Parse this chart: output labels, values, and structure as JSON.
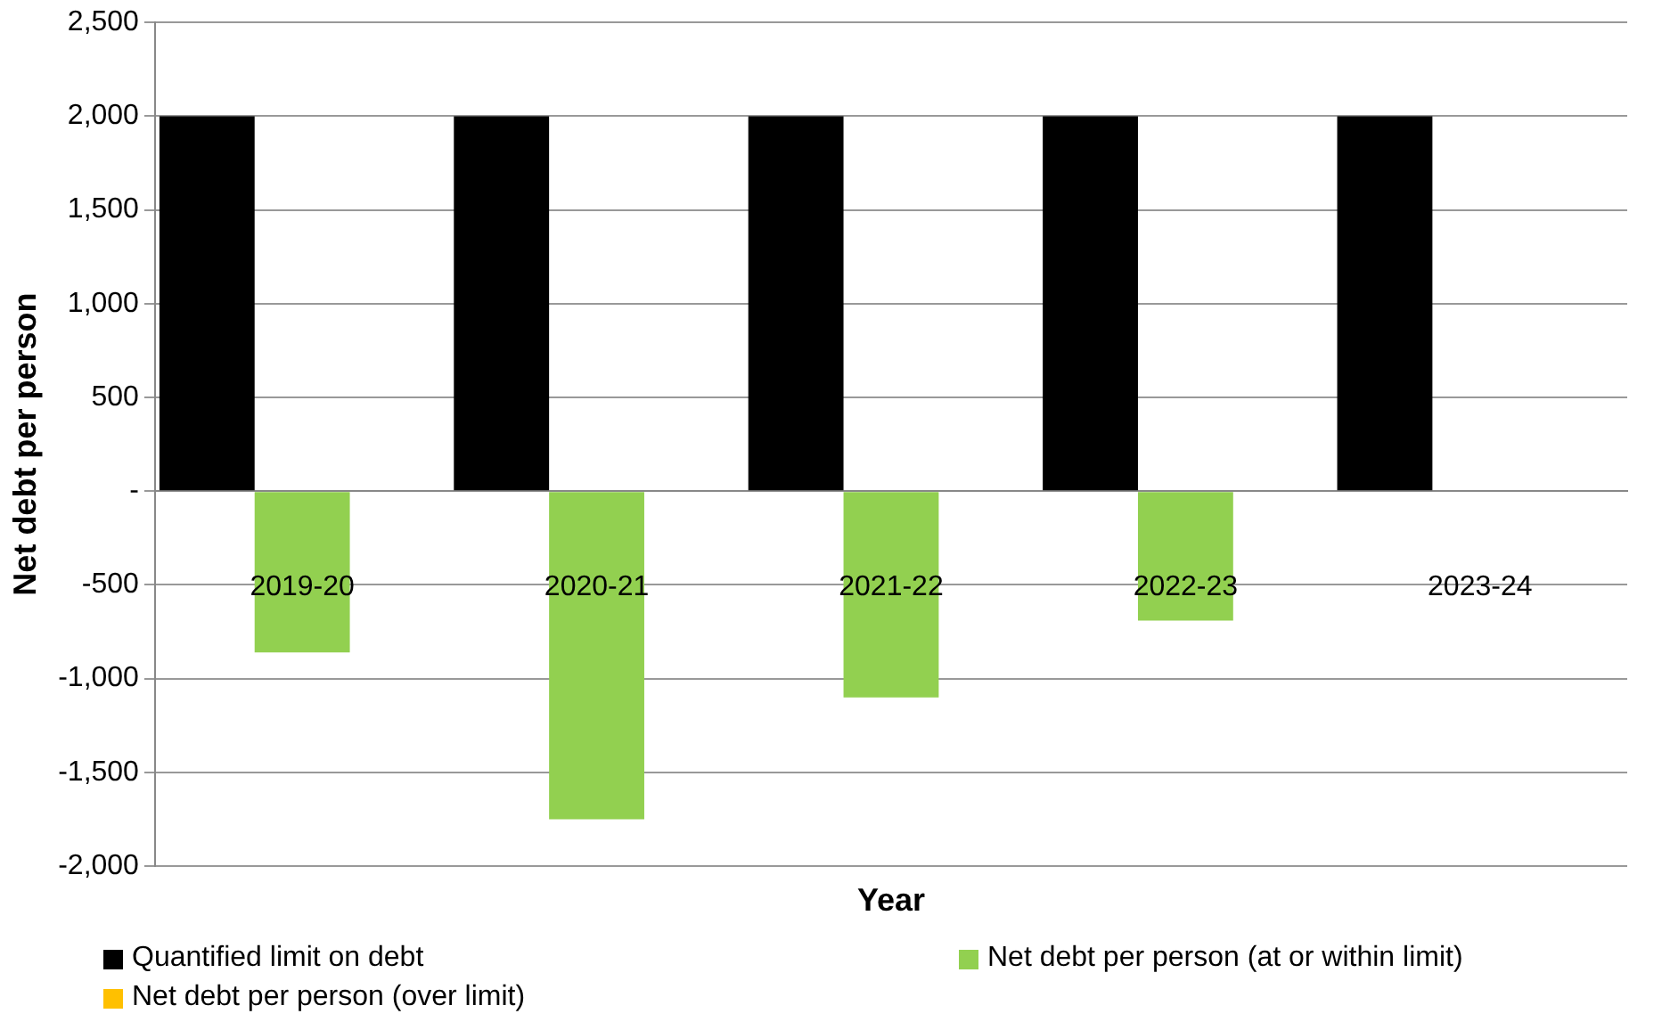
{
  "chart_data": {
    "type": "bar",
    "xlabel": "Year",
    "ylabel": "Net debt per person",
    "categories": [
      "2019-20",
      "2020-21",
      "2021-22",
      "2022-23",
      "2023-24"
    ],
    "series": [
      {
        "name": "Quantified limit on debt",
        "color": "#000000",
        "values": [
          2000,
          2000,
          2000,
          2000,
          2000
        ]
      },
      {
        "name": "Net debt per person (at or within limit)",
        "color": "#92d050",
        "values": [
          -860,
          -1750,
          -1100,
          -690,
          null
        ]
      },
      {
        "name": "Net debt per person (over limit)",
        "color": "#ffc000",
        "values": [
          null,
          null,
          null,
          null,
          null
        ]
      }
    ],
    "ylim": [
      -2000,
      2500
    ],
    "yticks": [
      {
        "value": -2000,
        "label": "-2,000"
      },
      {
        "value": -1500,
        "label": "-1,500"
      },
      {
        "value": -1000,
        "label": "-1,000"
      },
      -500,
      {
        "value": 0,
        "label": "-"
      },
      500,
      {
        "value": 1000,
        "label": "1,000"
      },
      {
        "value": 1500,
        "label": "1,500"
      },
      {
        "value": 2000,
        "label": "2,000"
      },
      {
        "value": 2500,
        "label": "2,500"
      }
    ],
    "grid": "y",
    "legend": "bottom"
  }
}
